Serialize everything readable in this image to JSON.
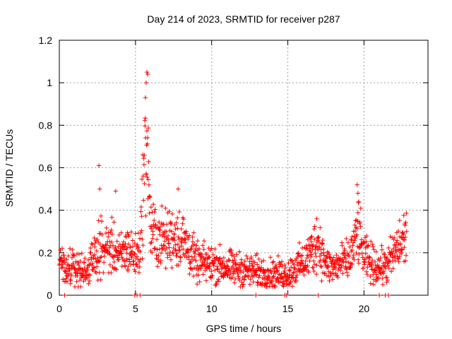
{
  "chart_data": {
    "type": "scatter",
    "title": "Day 214 of 2023, SRMTID for receiver p287",
    "xlabel": "GPS time / hours",
    "ylabel": "SRMTID / TECUs",
    "xlim": [
      0,
      24.2
    ],
    "ylim": [
      0,
      1.2
    ],
    "xticks": [
      0,
      5,
      10,
      15,
      20
    ],
    "xtick_labels": [
      "0",
      "5",
      "10",
      "15",
      "20"
    ],
    "yticks": [
      0,
      0.2,
      0.4,
      0.6,
      0.8,
      1,
      1.2
    ],
    "ytick_labels": [
      "0",
      "0.2",
      "0.4",
      "0.6",
      "0.8",
      "1",
      "1.2"
    ],
    "grid": true,
    "legend": "none",
    "marker": "plus",
    "color": "#ff0000",
    "series": [
      {
        "name": "SRMTID p287",
        "profile": [
          [
            0.0,
            0.17
          ],
          [
            0.5,
            0.12
          ],
          [
            1.0,
            0.13
          ],
          [
            1.5,
            0.11
          ],
          [
            2.0,
            0.13
          ],
          [
            2.5,
            0.21
          ],
          [
            3.0,
            0.22
          ],
          [
            3.5,
            0.22
          ],
          [
            4.0,
            0.18
          ],
          [
            4.5,
            0.22
          ],
          [
            5.0,
            0.18
          ],
          [
            5.3,
            0.22
          ],
          [
            5.55,
            0.56
          ],
          [
            5.75,
            0.75
          ],
          [
            6.0,
            0.3
          ],
          [
            6.5,
            0.27
          ],
          [
            7.0,
            0.26
          ],
          [
            7.5,
            0.28
          ],
          [
            8.0,
            0.27
          ],
          [
            8.5,
            0.22
          ],
          [
            9.0,
            0.15
          ],
          [
            10.0,
            0.15
          ],
          [
            11.0,
            0.13
          ],
          [
            12.0,
            0.12
          ],
          [
            13.0,
            0.11
          ],
          [
            14.0,
            0.1
          ],
          [
            15.0,
            0.1
          ],
          [
            15.5,
            0.13
          ],
          [
            16.0,
            0.15
          ],
          [
            16.5,
            0.2
          ],
          [
            17.0,
            0.25
          ],
          [
            17.5,
            0.14
          ],
          [
            18.0,
            0.13
          ],
          [
            18.5,
            0.15
          ],
          [
            19.0,
            0.16
          ],
          [
            19.3,
            0.22
          ],
          [
            19.6,
            0.3
          ],
          [
            20.0,
            0.18
          ],
          [
            20.5,
            0.15
          ],
          [
            21.0,
            0.13
          ],
          [
            21.5,
            0.14
          ],
          [
            22.0,
            0.2
          ],
          [
            22.5,
            0.25
          ],
          [
            22.8,
            0.28
          ]
        ],
        "outliers": [
          [
            2.6,
            0.61
          ],
          [
            2.65,
            0.5
          ],
          [
            3.7,
            0.49
          ],
          [
            5.75,
            1.05
          ],
          [
            5.8,
            1.04
          ],
          [
            5.7,
            1.0
          ],
          [
            5.65,
            0.93
          ],
          [
            7.8,
            0.5
          ],
          [
            19.55,
            0.52
          ],
          [
            19.6,
            0.48
          ],
          [
            19.65,
            0.44
          ],
          [
            16.9,
            0.36
          ]
        ],
        "zero_points": [
          0.35,
          4.95,
          5.1,
          5.3,
          12.9,
          14.8,
          14.9,
          17.0,
          21.0,
          21.4,
          21.6
        ]
      }
    ]
  }
}
